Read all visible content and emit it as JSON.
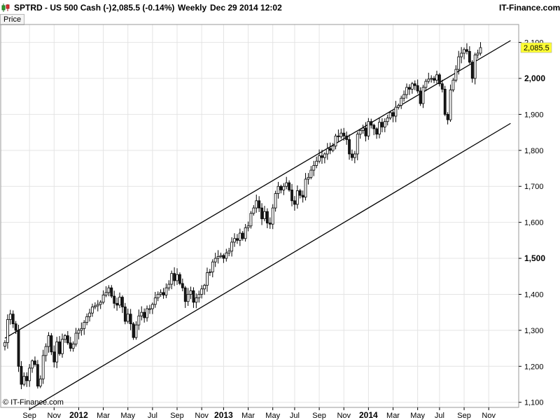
{
  "header": {
    "symbol": "SPTRD - US 500 Cash (-)",
    "quote": "2,085.5 (-0.14%)",
    "period": "Weekly",
    "datetime": "Dec 29 2014 12:02",
    "brand": "IT-Finance.com"
  },
  "toolbar": {
    "price_tab": "Price"
  },
  "watermark": "© IT-Finance.com",
  "colors": {
    "up": "#ffffff",
    "down": "#1a1a1a",
    "wick": "#000000",
    "last_price_bg": "#ffff33",
    "grid": "#e4e4e4"
  },
  "chart_data": {
    "type": "candlestick",
    "ylim": [
      1080,
      2105
    ],
    "y_ticks": [
      {
        "value": 1100,
        "label": "1,100",
        "bold": false
      },
      {
        "value": 1200,
        "label": "1,200",
        "bold": false
      },
      {
        "value": 1300,
        "label": "1,300",
        "bold": false
      },
      {
        "value": 1400,
        "label": "1,400",
        "bold": false
      },
      {
        "value": 1500,
        "label": "1,500",
        "bold": true
      },
      {
        "value": 1600,
        "label": "1,600",
        "bold": false
      },
      {
        "value": 1700,
        "label": "1,700",
        "bold": false
      },
      {
        "value": 1800,
        "label": "1,800",
        "bold": false
      },
      {
        "value": 1900,
        "label": "1,900",
        "bold": false
      },
      {
        "value": 2000,
        "label": "2,000",
        "bold": true
      },
      {
        "value": 2100,
        "label": "2,100",
        "bold": false
      }
    ],
    "x_ticks": [
      {
        "label": "Sep",
        "week": 9,
        "bold": false
      },
      {
        "label": "Nov",
        "week": 18,
        "bold": false
      },
      {
        "label": "2012",
        "week": 27,
        "bold": true
      },
      {
        "label": "Mar",
        "week": 36,
        "bold": false
      },
      {
        "label": "May",
        "week": 45,
        "bold": false
      },
      {
        "label": "Jul",
        "week": 54,
        "bold": false
      },
      {
        "label": "Sep",
        "week": 63,
        "bold": false
      },
      {
        "label": "Nov",
        "week": 72,
        "bold": false
      },
      {
        "label": "2013",
        "week": 80,
        "bold": true
      },
      {
        "label": "Mar",
        "week": 89,
        "bold": false
      },
      {
        "label": "May",
        "week": 98,
        "bold": false
      },
      {
        "label": "Jul",
        "week": 106,
        "bold": false
      },
      {
        "label": "Sep",
        "week": 115,
        "bold": false
      },
      {
        "label": "Nov",
        "week": 124,
        "bold": false
      },
      {
        "label": "2014",
        "week": 133,
        "bold": true
      },
      {
        "label": "Mar",
        "week": 142,
        "bold": false
      },
      {
        "label": "May",
        "week": 151,
        "bold": false
      },
      {
        "label": "Jul",
        "week": 159,
        "bold": false
      },
      {
        "label": "Sep",
        "week": 168,
        "bold": false
      },
      {
        "label": "Nov",
        "week": 177,
        "bold": false
      }
    ],
    "closes": [
      1266,
      1330,
      1345,
      1318,
      1300,
      1200,
      1150,
      1172,
      1160,
      1195,
      1215,
      1205,
      1145,
      1165,
      1230,
      1255,
      1285,
      1240,
      1212,
      1268,
      1235,
      1275,
      1285,
      1265,
      1250,
      1262,
      1292,
      1300,
      1305,
      1322,
      1338,
      1348,
      1365,
      1368,
      1372,
      1378,
      1398,
      1405,
      1418,
      1395,
      1375,
      1370,
      1392,
      1365,
      1325,
      1345,
      1318,
      1280,
      1315,
      1340,
      1350,
      1335,
      1360,
      1360,
      1372,
      1390,
      1400,
      1405,
      1398,
      1418,
      1428,
      1458,
      1438,
      1455,
      1430,
      1418,
      1380,
      1400,
      1410,
      1378,
      1390,
      1400,
      1415,
      1425,
      1460,
      1462,
      1490,
      1500,
      1505,
      1508,
      1500,
      1515,
      1520,
      1545,
      1555,
      1550,
      1570,
      1555,
      1585,
      1590,
      1625,
      1640,
      1660,
      1640,
      1610,
      1630,
      1598,
      1595,
      1640,
      1680,
      1700,
      1690,
      1700,
      1710,
      1690,
      1660,
      1650,
      1688,
      1675,
      1670,
      1720,
      1725,
      1745,
      1758,
      1770,
      1785,
      1780,
      1790,
      1805,
      1800,
      1812,
      1840,
      1838,
      1848,
      1840,
      1830,
      1790,
      1780,
      1790,
      1845,
      1855,
      1862,
      1840,
      1880,
      1870,
      1860,
      1845,
      1878,
      1865,
      1880,
      1890,
      1905,
      1895,
      1920,
      1925,
      1945,
      1955,
      1975,
      1970,
      1985,
      1980,
      1965,
      1930,
      1975,
      1992,
      1998,
      2000,
      1995,
      2010,
      1985,
      1970,
      1900,
      1885,
      1968,
      1995,
      2025,
      2060,
      2070,
      2080,
      2075,
      2045,
      2000,
      2065,
      2070,
      2085.5
    ],
    "channel": {
      "upper": {
        "start": {
          "week": 0,
          "value": 1278
        },
        "end": {
          "week": 185,
          "value": 2105
        }
      },
      "lower": {
        "start": {
          "week": 9,
          "value": 1080
        },
        "end": {
          "week": 185,
          "value": 1875
        }
      }
    },
    "last_price": {
      "value": 2085.5,
      "label": "2,085.5"
    },
    "grid": true
  }
}
